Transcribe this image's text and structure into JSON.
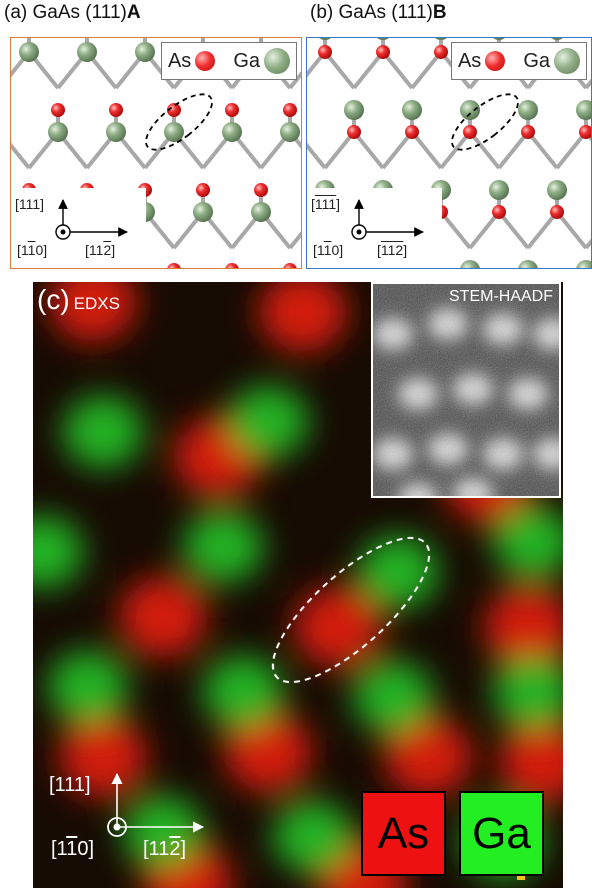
{
  "panel_a": {
    "title_prefix": "(a) GaAs (111)",
    "title_bold": "A",
    "legend": {
      "as": "As",
      "ga": "Ga"
    },
    "axes": {
      "up": "[111]",
      "out": "[1",
      "out_bar": "1",
      "out_end": "0]",
      "right": "[11",
      "right_bar": "2",
      "right_end": "]"
    },
    "border_color": "#e07a3a"
  },
  "panel_b": {
    "title_prefix": "(b) GaAs (111)",
    "title_bold": "B",
    "legend": {
      "as": "As",
      "ga": "Ga"
    },
    "axes": {
      "up_pre": "[",
      "up_bar": "111",
      "up_end": "]",
      "out": "[1",
      "out_bar": "1",
      "out_end": "0]",
      "right_pre": "[",
      "right_bar": "112",
      "right_end": "]"
    },
    "border_color": "#3a78c8"
  },
  "panel_c": {
    "label": "(c)",
    "method": "EDXS",
    "inset_label": "STEM-HAADF",
    "axes": {
      "up": "[111]",
      "out": "[1",
      "out_bar": "1",
      "out_end": "0]",
      "right": "[11",
      "right_bar": "2",
      "right_end": "]"
    },
    "key": {
      "as": "As",
      "ga": "Ga"
    },
    "colors": {
      "as": "#ee1111",
      "ga": "#22ee22"
    }
  }
}
